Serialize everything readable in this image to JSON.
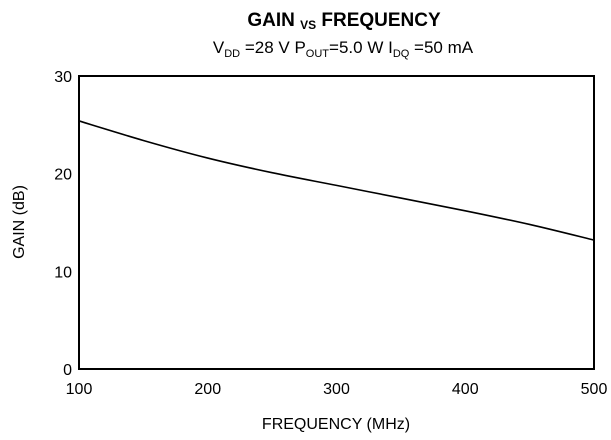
{
  "chart_data": {
    "type": "line",
    "title": {
      "part1": "GAIN ",
      "vs": "VS",
      "part2": " FREQUENCY"
    },
    "subtitle": {
      "vdd_label": "V",
      "vdd_sub": "DD",
      "vdd_value": " =28 V ",
      "pout_label": "P",
      "pout_sub": "OUT",
      "pout_value": "=5.0 W ",
      "idq_label": "I",
      "idq_sub": "DQ",
      "idq_value": " =50 mA"
    },
    "xlabel": "FREQUENCY (MHz)",
    "ylabel": "GAIN (dB)",
    "xlim": [
      100,
      500
    ],
    "ylim": [
      0,
      30
    ],
    "x_ticks": [
      100,
      200,
      300,
      400,
      500
    ],
    "y_ticks": [
      0,
      10,
      20,
      30
    ],
    "grid": false,
    "series": [
      {
        "x": [
          100,
          150,
          200,
          250,
          300,
          350,
          400,
          450,
          500
        ],
        "y": [
          25.4,
          23.4,
          21.6,
          20.1,
          18.8,
          17.5,
          16.2,
          14.8,
          13.2
        ]
      }
    ]
  }
}
